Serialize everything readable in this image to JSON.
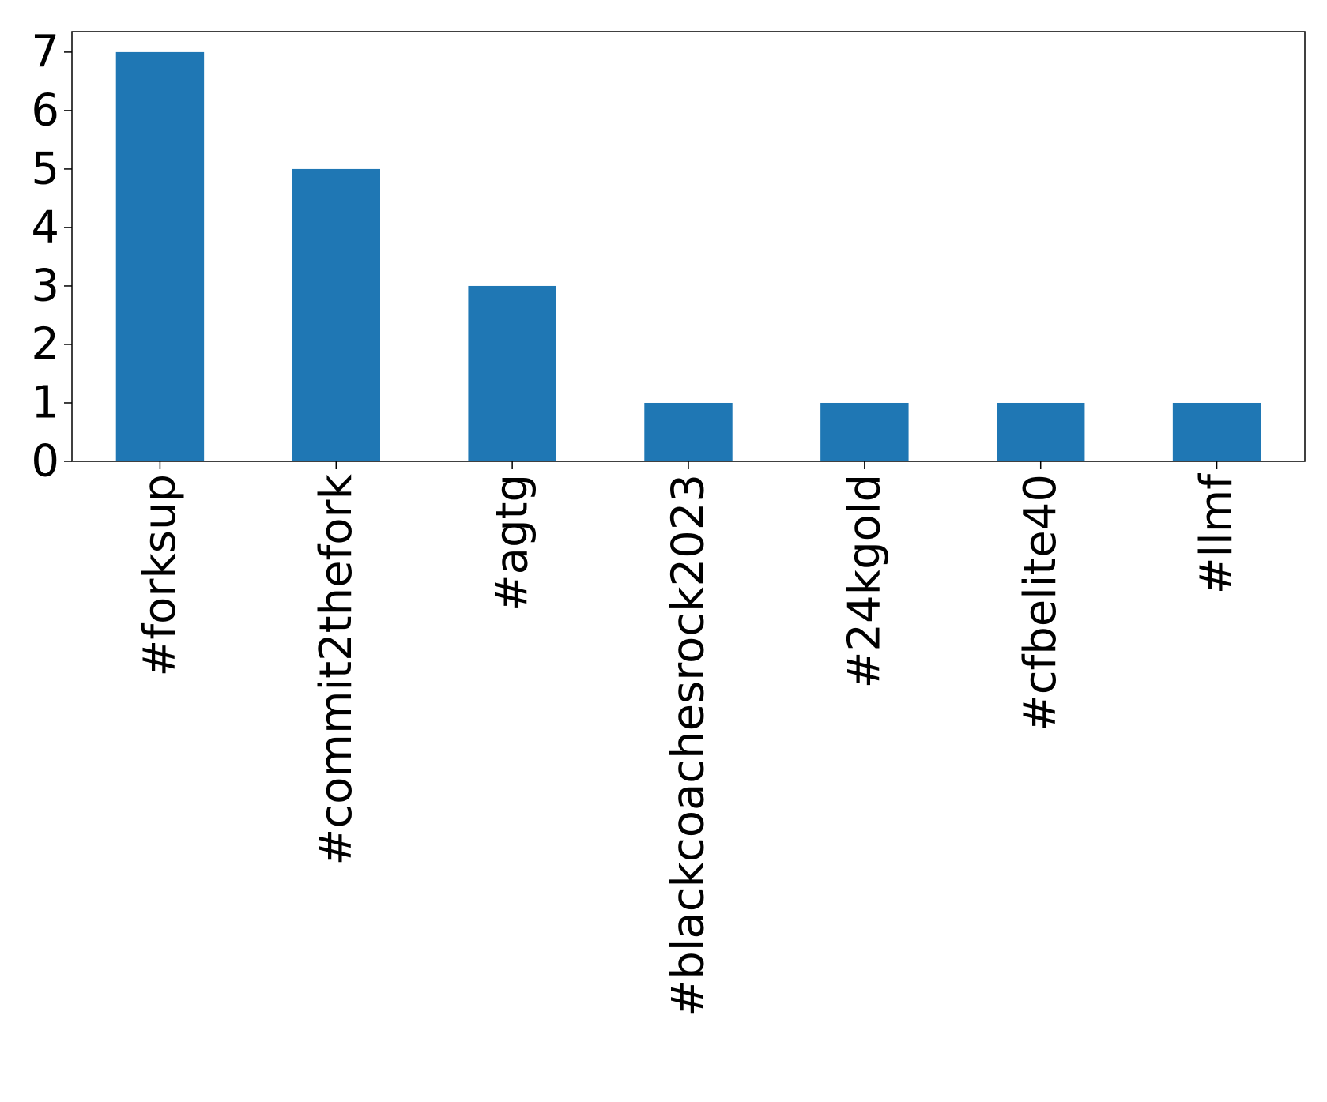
{
  "chart_data": {
    "type": "bar",
    "title": "",
    "xlabel": "",
    "ylabel": "",
    "categories": [
      "#forksup",
      "#commit2thefork",
      "#agtg",
      "#blackcoachesrock2023",
      "#24kgold",
      "#cfbelite40",
      "#llmf"
    ],
    "values": [
      7,
      5,
      3,
      1,
      1,
      1,
      1
    ],
    "ylim": [
      0,
      7.35
    ],
    "yticks": [
      0,
      1,
      2,
      3,
      4,
      5,
      6,
      7
    ],
    "bar_color": "#1f77b4",
    "grid": false,
    "legend": "none",
    "xtick_rotation": "vertical"
  }
}
